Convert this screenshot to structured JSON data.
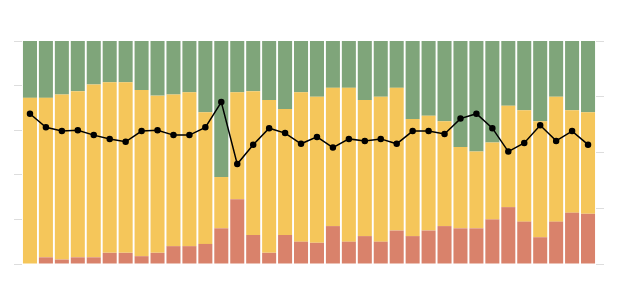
{
  "chart_data": {
    "type": "bar",
    "stacked": true,
    "grid": false,
    "tick_labels": false,
    "categories": [
      null,
      null,
      null,
      null,
      null,
      null,
      null,
      null,
      null,
      null,
      null,
      null,
      null,
      null,
      null,
      null,
      null,
      null,
      null,
      null,
      null,
      null,
      null,
      null,
      null,
      null,
      null,
      null,
      null,
      null,
      null,
      null,
      null,
      null,
      null,
      null
    ],
    "ylim": [
      0,
      100
    ],
    "yticks": [
      0,
      20,
      40,
      60,
      80,
      100
    ],
    "y2lim": [
      0,
      100
    ],
    "y2ticks": [
      0,
      25,
      50,
      75,
      100
    ],
    "series": [
      {
        "color": "#d9826b",
        "values": [
          0,
          3,
          2,
          3,
          3,
          5,
          5,
          3.5,
          5,
          8,
          8,
          9,
          16,
          29,
          13,
          5,
          13,
          10,
          9.5,
          17,
          10,
          12.5,
          10,
          15,
          12.5,
          15,
          17,
          16,
          16,
          20,
          25.5,
          19,
          12,
          19,
          23,
          22.5
        ]
      },
      {
        "color": "#f5c65a",
        "values": [
          74.5,
          71.5,
          74,
          74.5,
          77.5,
          76.5,
          76.5,
          74.5,
          70.5,
          68,
          69,
          59,
          23,
          48,
          64.5,
          68.5,
          56.5,
          67,
          65.5,
          62,
          69,
          61,
          65,
          64,
          52.5,
          51.5,
          47,
          36.5,
          34.5,
          34.5,
          45.5,
          50,
          52,
          56,
          46,
          45.5
        ]
      },
      {
        "color": "#7fa57a",
        "values": [
          25.5,
          25.5,
          24,
          22.5,
          19.5,
          18.5,
          18.5,
          22,
          24.5,
          24,
          23,
          32,
          61,
          23,
          22.5,
          26.5,
          30.5,
          23,
          25,
          21,
          21,
          26.5,
          25,
          21,
          35,
          33.5,
          36,
          47.5,
          49.5,
          45.5,
          29,
          31,
          36,
          25,
          31,
          32
        ]
      },
      {
        "type": "line",
        "axis": "y2",
        "color": "#000000",
        "marker": "circle",
        "line_style": "solid",
        "values": [
          67.4,
          61.3,
          59.6,
          60,
          57.8,
          56.1,
          54.8,
          59.6,
          60,
          57.8,
          57.8,
          61.3,
          72.6,
          44.8,
          53.5,
          60.9,
          58.7,
          53.9,
          57,
          52.2,
          56.1,
          55.2,
          56.1,
          53.9,
          59.6,
          59.6,
          58.3,
          65.2,
          67.4,
          60.9,
          50.4,
          54.3,
          62.2,
          55.2,
          59.6,
          53.5
        ]
      }
    ]
  }
}
